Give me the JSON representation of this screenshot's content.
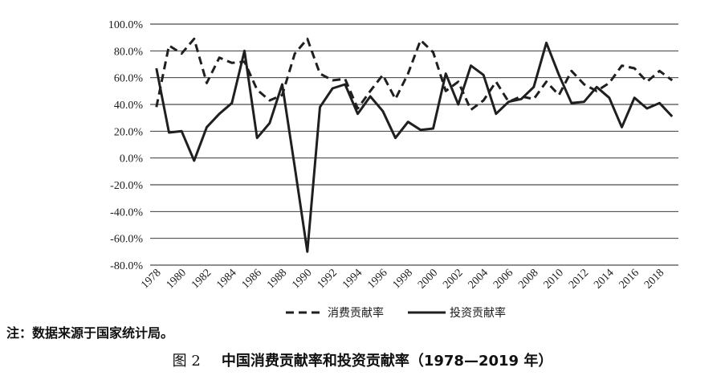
{
  "chart_data": {
    "type": "line",
    "x": [
      1978,
      1979,
      1980,
      1981,
      1982,
      1983,
      1984,
      1985,
      1986,
      1987,
      1988,
      1989,
      1990,
      1991,
      1992,
      1993,
      1994,
      1995,
      1996,
      1997,
      1998,
      1999,
      2000,
      2001,
      2002,
      2003,
      2004,
      2005,
      2006,
      2007,
      2008,
      2009,
      2010,
      2011,
      2012,
      2013,
      2014,
      2015,
      2016,
      2017,
      2018,
      2019
    ],
    "x_ticks": [
      1978,
      1980,
      1982,
      1984,
      1986,
      1988,
      1990,
      1992,
      1994,
      1996,
      1998,
      2000,
      2002,
      2004,
      2006,
      2008,
      2010,
      2012,
      2014,
      2016,
      2018
    ],
    "x_tick_labels": [
      "1978",
      "1980",
      "1982",
      "1984",
      "1986",
      "1988",
      "1990",
      "1992",
      "1994",
      "1996",
      "1998",
      "2000",
      "2002",
      "2004",
      "2006",
      "2008",
      "2010",
      "2012",
      "2014",
      "2016",
      "2018"
    ],
    "y_ticks": [
      100,
      80,
      60,
      40,
      20,
      0,
      -20,
      -40,
      -60,
      -80
    ],
    "y_tick_labels": [
      "100.0%",
      "80.0%",
      "60.0%",
      "40.0%",
      "20.0%",
      "0.0%",
      "-20.0%",
      "-40.0%",
      "-60.0%",
      "-80.0%"
    ],
    "ylim": [
      -80,
      100
    ],
    "grid": true,
    "legend_position": "bottom",
    "series": [
      {
        "name": "消费贡献率",
        "line_style": "dashed",
        "color": "#1f1f1f",
        "values": [
          38,
          84,
          78,
          89,
          56,
          75,
          71,
          72,
          51,
          43,
          47,
          78,
          89,
          63,
          58,
          59,
          37,
          50,
          62,
          44,
          63,
          88,
          79,
          50,
          57,
          36,
          43,
          57,
          42,
          46,
          44,
          57,
          47,
          65,
          55,
          50,
          56,
          69,
          67,
          57,
          65,
          58
        ]
      },
      {
        "name": "投资贡献率",
        "line_style": "solid",
        "color": "#1f1f1f",
        "values": [
          67,
          19,
          20,
          -2,
          23,
          33,
          41,
          80,
          15,
          26,
          55,
          -7,
          -70,
          38,
          52,
          55,
          33,
          46,
          35,
          15,
          27,
          21,
          22,
          63,
          40,
          69,
          62,
          33,
          42,
          44,
          53,
          86,
          62,
          41,
          42,
          53,
          45,
          23,
          45,
          37,
          41,
          31
        ]
      }
    ]
  },
  "note": "注：数据来源于国家统计局。",
  "caption": {
    "label": "图 2",
    "title": "中国消费贡献率和投资贡献率（1978—2019 年）"
  },
  "colors": {
    "gridline": "#1f1f1f",
    "text": "#1a1a1a"
  }
}
